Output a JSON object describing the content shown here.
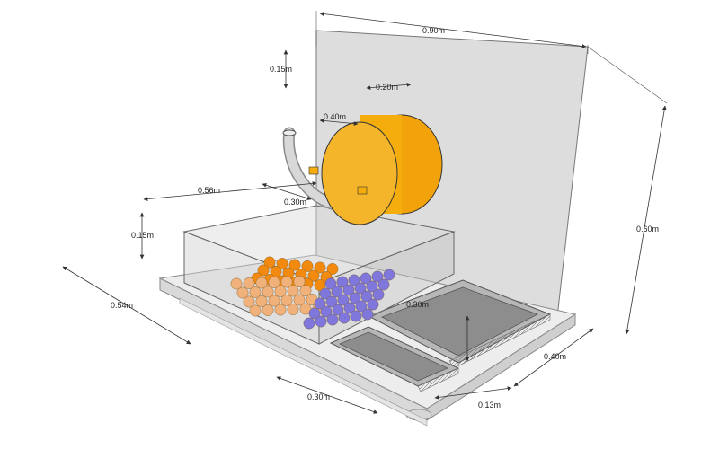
{
  "dimensions": {
    "backplate_width": "0.90m",
    "backplate_height": "0.60m",
    "arm_offset": "0.15m",
    "cylinder_depth": "0.20m",
    "cylinder_diameter": "0.40m",
    "gripper_span": "0.30m",
    "bin_length": "0.56m",
    "bin_height": "0.15m",
    "table_depth": "0.54m",
    "tray_width": "0.30m",
    "small_tray_depth": "0.13m",
    "large_tray_depth": "0.40m",
    "large_tray_width": "0.30m"
  },
  "colors": {
    "cylinder": "#f5ad0d",
    "orange_balls": "#f28a10",
    "peach_balls": "#f0b27a",
    "purple_balls": "#7f77dc",
    "glass": "#c9c9c9",
    "table": "#ececec"
  }
}
